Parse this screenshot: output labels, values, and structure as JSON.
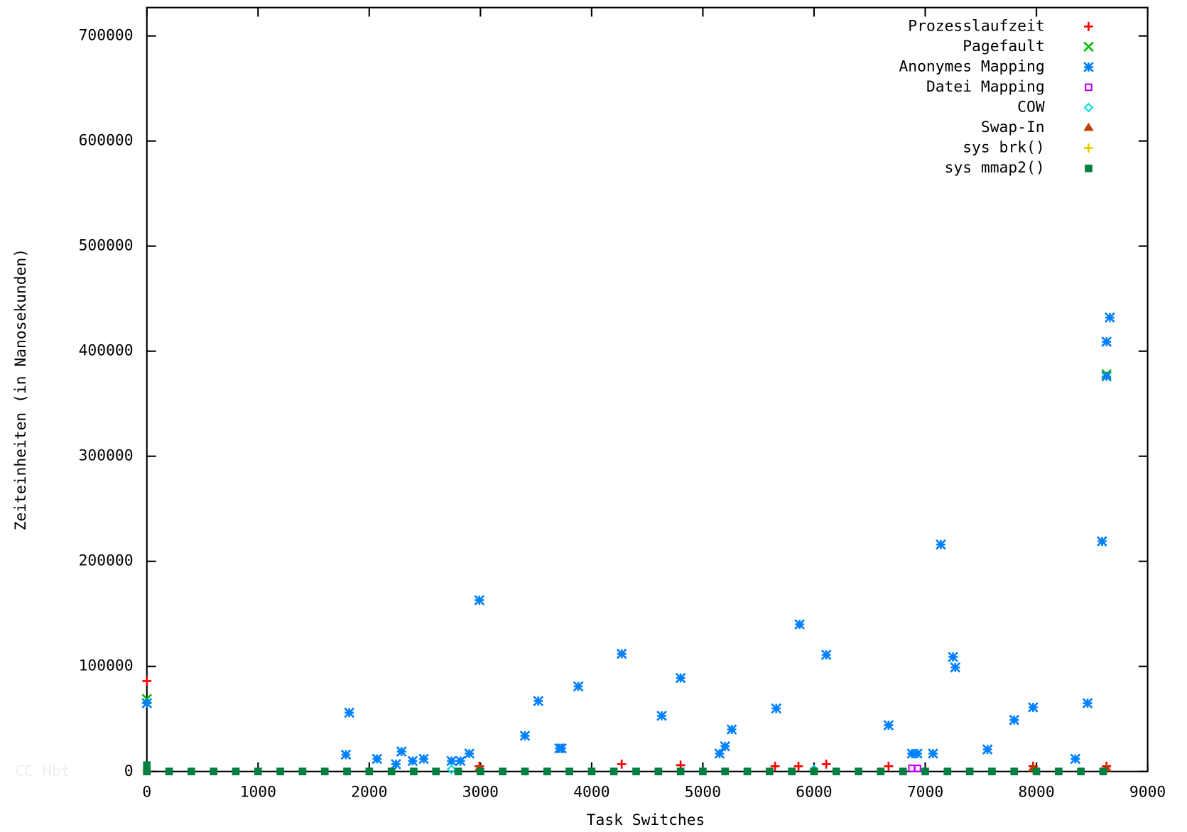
{
  "chart_data": {
    "type": "scatter",
    "xlabel": "Task Switches",
    "ylabel": "Zeiteinheiten (in Nanosekunden)",
    "watermark": "CC Hbt",
    "xlim": [
      0,
      9000
    ],
    "xticks": [
      0,
      1000,
      2000,
      3000,
      4000,
      5000,
      6000,
      7000,
      8000,
      9000
    ],
    "ylim": [
      0,
      727000
    ],
    "yticks": [
      0,
      100000,
      200000,
      300000,
      400000,
      500000,
      600000,
      700000
    ],
    "legend": "top-right",
    "series": [
      {
        "name": "Prozesslaufzeit",
        "color": "#ff0000",
        "marker": "plus",
        "x": [
          0,
          2990,
          4270,
          4800,
          5650,
          5860,
          6110,
          6670,
          7970,
          8630
        ],
        "values": [
          86000,
          5000,
          7000,
          6000,
          5000,
          5000,
          7000,
          5000,
          5000,
          5000
        ]
      },
      {
        "name": "Pagefault",
        "color": "#00c000",
        "marker": "cross",
        "x": [
          0,
          8630
        ],
        "values": [
          69000,
          378000
        ]
      },
      {
        "name": "Anonymes Mapping",
        "color": "#0080ff",
        "marker": "star",
        "x": [
          0,
          1790,
          1820,
          2070,
          2240,
          2290,
          2390,
          2490,
          2740,
          2820,
          2900,
          2990,
          3400,
          3520,
          3710,
          3730,
          3880,
          4270,
          4630,
          4800,
          5150,
          5200,
          5260,
          5660,
          5870,
          6110,
          6670,
          6880,
          6930,
          7070,
          7140,
          7250,
          7270,
          7560,
          7800,
          7970,
          8350,
          8460,
          8590,
          8630,
          8630,
          8660
        ],
        "values": [
          65000,
          16000,
          56000,
          12000,
          7000,
          19000,
          10000,
          12000,
          10000,
          10000,
          17000,
          163000,
          34000,
          67000,
          22000,
          22000,
          81000,
          112000,
          53000,
          89000,
          17000,
          24000,
          40000,
          60000,
          140000,
          111000,
          44000,
          17000,
          17000,
          17000,
          216000,
          109000,
          99000,
          21000,
          49000,
          61000,
          12000,
          65000,
          219000,
          409000,
          376000,
          432000
        ]
      },
      {
        "name": "Datei Mapping",
        "color": "#c000ff",
        "marker": "square",
        "x": [
          6880,
          6930
        ],
        "values": [
          3000,
          3000
        ]
      },
      {
        "name": "COW",
        "color": "#00dddd",
        "marker": "diamond",
        "x": [
          2740,
          6000
        ],
        "values": [
          2000,
          2000
        ]
      },
      {
        "name": "Swap-In",
        "color": "#c04000",
        "marker": "triangle",
        "x": [
          2990,
          7970,
          8630
        ],
        "values": [
          3000,
          3000,
          3000
        ]
      },
      {
        "name": "sys brk()",
        "color": "#eecc00",
        "marker": "plus",
        "x": [
          0
        ],
        "values": [
          1000
        ]
      },
      {
        "name": "sys mmap2()",
        "color": "#008040",
        "marker": "square",
        "x": [
          0,
          0,
          200,
          400,
          600,
          800,
          1000,
          1200,
          1400,
          1600,
          1800,
          2000,
          2200,
          2400,
          2600,
          2800,
          3000,
          3200,
          3400,
          3600,
          3800,
          4000,
          4200,
          4400,
          4600,
          4800,
          5000,
          5200,
          5400,
          5600,
          5800,
          6000,
          6200,
          6400,
          6600,
          6800,
          7000,
          7200,
          7400,
          7600,
          7800,
          8000,
          8200,
          8400,
          8600
        ],
        "values": [
          6000,
          0,
          0,
          0,
          0,
          0,
          0,
          0,
          0,
          0,
          0,
          0,
          0,
          0,
          0,
          0,
          0,
          0,
          0,
          0,
          0,
          0,
          0,
          0,
          0,
          0,
          0,
          0,
          0,
          0,
          0,
          0,
          0,
          0,
          0,
          0,
          0,
          0,
          0,
          0,
          0,
          0,
          0,
          0,
          0
        ]
      }
    ]
  }
}
